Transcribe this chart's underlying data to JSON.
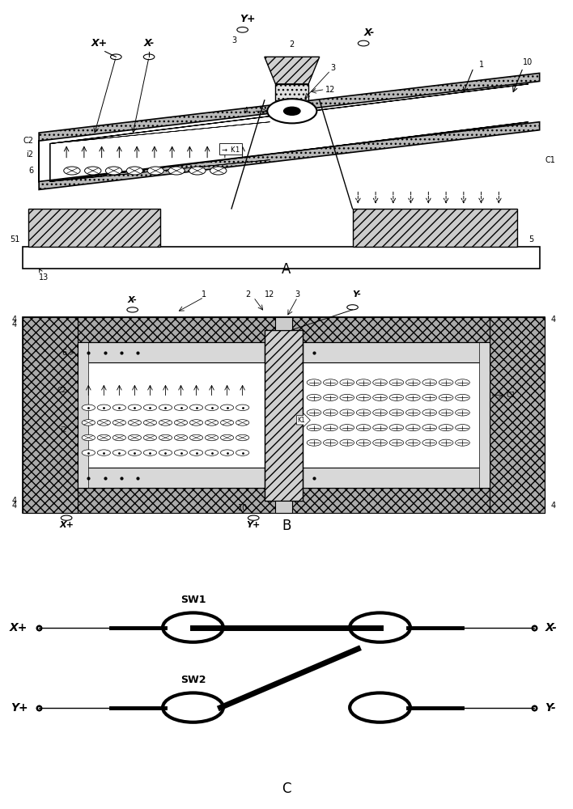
{
  "bg_color": "#ffffff",
  "panel_A_label": "A",
  "panel_B_label": "B",
  "panel_C_label": "C"
}
